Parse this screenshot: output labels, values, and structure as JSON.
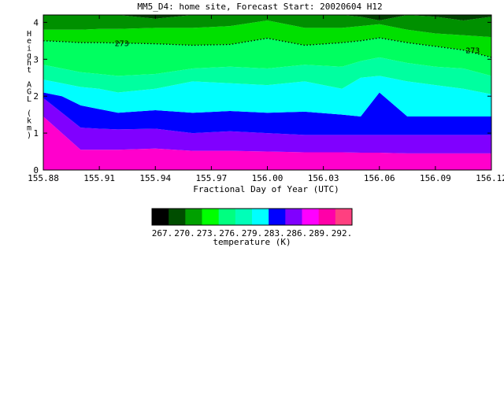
{
  "chart_data": {
    "type": "contour",
    "title": "MM5_D4: home site,  Forecast Start: 20020604 H12",
    "xlabel": "Fractional Day of Year (UTC)",
    "ylabel": "Height AGL (km)",
    "x_ticks": [
      "155.88",
      "155.91",
      "155.94",
      "155.97",
      "156.00",
      "156.03",
      "156.06",
      "156.09",
      "156.12"
    ],
    "x_tick_values": [
      155.88,
      155.91,
      155.94,
      155.97,
      156.0,
      156.03,
      156.06,
      156.09,
      156.12
    ],
    "y_ticks": [
      "0",
      "1",
      "2",
      "3",
      "4"
    ],
    "y_tick_values": [
      0,
      1,
      2,
      3,
      4
    ],
    "xlim": [
      155.88,
      156.12
    ],
    "ylim": [
      0,
      4.2
    ],
    "x": [
      155.88,
      155.89,
      155.9,
      155.91,
      155.92,
      155.94,
      155.96,
      155.98,
      156.0,
      156.02,
      156.04,
      156.05,
      156.06,
      156.075,
      156.09,
      156.105,
      156.12
    ],
    "boundaries": [
      {
        "level": 289,
        "heights": [
          1.45,
          1.0,
          0.55,
          0.55,
          0.55,
          0.58,
          0.52,
          0.52,
          0.5,
          0.48,
          0.48,
          0.47,
          0.47,
          0.45,
          0.45,
          0.45,
          0.45
        ]
      },
      {
        "level": 286,
        "heights": [
          1.95,
          1.55,
          1.15,
          1.12,
          1.1,
          1.12,
          1.0,
          1.05,
          1.0,
          0.95,
          0.95,
          0.95,
          0.95,
          0.95,
          0.95,
          0.95,
          0.95
        ]
      },
      {
        "level": 283,
        "heights": [
          2.1,
          2.0,
          1.75,
          1.65,
          1.55,
          1.62,
          1.55,
          1.6,
          1.55,
          1.58,
          1.5,
          1.45,
          2.1,
          1.45,
          1.45,
          1.45,
          1.45
        ]
      },
      {
        "level": 279,
        "heights": [
          2.45,
          2.35,
          2.25,
          2.2,
          2.1,
          2.2,
          2.4,
          2.35,
          2.3,
          2.4,
          2.2,
          2.5,
          2.55,
          2.4,
          2.3,
          2.2,
          2.05
        ]
      },
      {
        "level": 276,
        "heights": [
          2.85,
          2.75,
          2.65,
          2.6,
          2.55,
          2.6,
          2.75,
          2.8,
          2.75,
          2.85,
          2.8,
          2.95,
          3.05,
          2.9,
          2.8,
          2.75,
          2.55
        ]
      },
      {
        "level": 273,
        "heights": [
          3.5,
          3.48,
          3.45,
          3.45,
          3.44,
          3.42,
          3.38,
          3.4,
          3.57,
          3.38,
          3.45,
          3.5,
          3.58,
          3.45,
          3.35,
          3.25,
          3.05
        ]
      },
      {
        "level": 270,
        "heights": [
          3.8,
          3.8,
          3.8,
          3.82,
          3.82,
          3.85,
          3.85,
          3.9,
          4.05,
          3.85,
          3.85,
          3.9,
          3.95,
          3.8,
          3.7,
          3.65,
          3.6
        ]
      },
      {
        "level": 267,
        "heights": [
          4.3,
          4.3,
          4.3,
          4.3,
          4.25,
          4.1,
          4.2,
          4.25,
          4.3,
          4.25,
          4.25,
          4.15,
          4.05,
          4.2,
          4.15,
          4.05,
          4.15
        ]
      }
    ],
    "contour_line": {
      "level": 273,
      "labels": [
        "273",
        "273"
      ]
    },
    "colorbar": {
      "label": "temperature (K)",
      "tick_labels": [
        "267.",
        "270.",
        "273.",
        "276.",
        "279.",
        "283.",
        "286.",
        "289.",
        "292."
      ],
      "colors": [
        "#000000",
        "#004d00",
        "#00a000",
        "#00ff00",
        "#00ff80",
        "#00ffb8",
        "#00ffff",
        "#0000ff",
        "#8000ff",
        "#ff00ff",
        "#ff00a8",
        "#ff4080"
      ]
    },
    "band_colors": [
      "#ff00cc",
      "#8000ff",
      "#0000ff",
      "#00ffff",
      "#00ffa0",
      "#00ff60",
      "#00e000",
      "#009000",
      "#004000"
    ],
    "grid": false
  }
}
